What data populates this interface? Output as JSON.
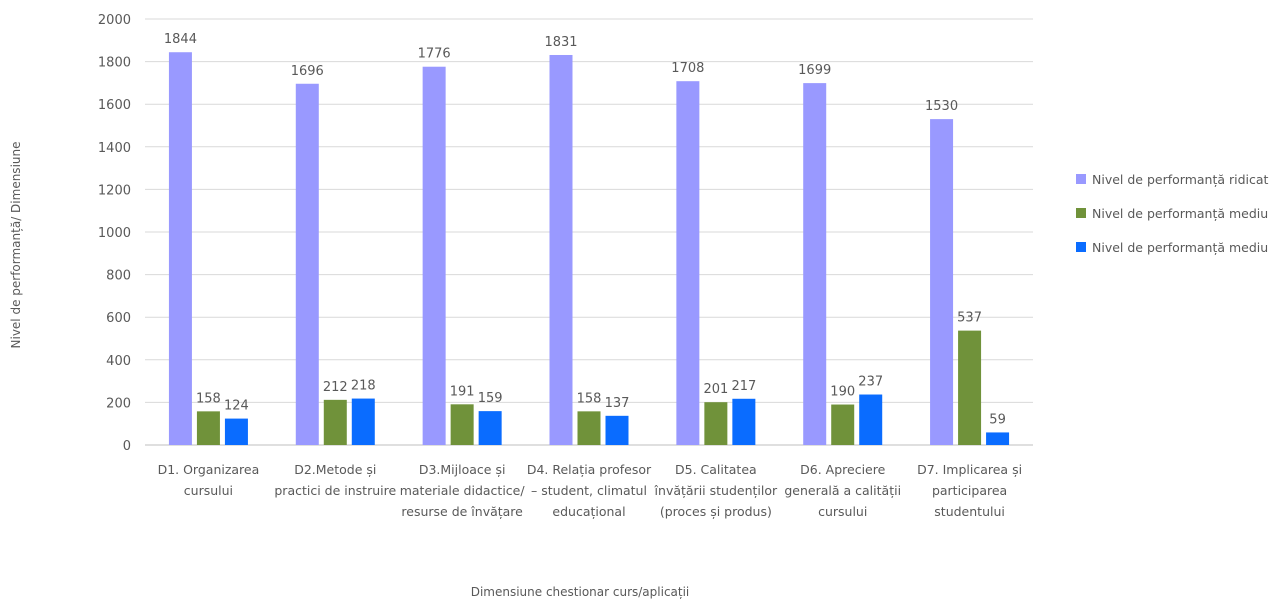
{
  "chart_data": {
    "type": "bar",
    "title": "",
    "xlabel": "Dimensiune chestionar curs/aplicații",
    "ylabel": "Nivel de performanță/ Dimensiune",
    "ylim": [
      0,
      2000
    ],
    "yticks": [
      0,
      200,
      400,
      600,
      800,
      1000,
      1200,
      1400,
      1600,
      1800,
      2000
    ],
    "grid": true,
    "legend_position": "right",
    "categories": [
      [
        "D1. Organizarea",
        "cursului"
      ],
      [
        "D2.Metode și",
        "practici de instruire"
      ],
      [
        "D3.Mijloace și",
        "materiale didactice/",
        "resurse de învățare"
      ],
      [
        "D4. Relația profesor",
        "– student, climatul",
        "educațional"
      ],
      [
        "D5. Calitatea",
        "învățării studenților",
        "(proces și produs)"
      ],
      [
        "D6. Apreciere",
        "generală a calității",
        "cursului"
      ],
      [
        "D7. Implicarea și",
        "participarea",
        "studentului"
      ]
    ],
    "series": [
      {
        "name": "Nivel de performanță ridicat",
        "color": "#9999ff",
        "values": [
          1844,
          1696,
          1776,
          1831,
          1708,
          1699,
          1530
        ]
      },
      {
        "name": "Nivel de performanță mediu",
        "color": "#70923a",
        "values": [
          158,
          212,
          191,
          158,
          201,
          190,
          537
        ]
      },
      {
        "name": "Nivel de performanță mediu",
        "color": "#0a6cff",
        "values": [
          124,
          218,
          159,
          137,
          217,
          237,
          59
        ]
      }
    ]
  }
}
